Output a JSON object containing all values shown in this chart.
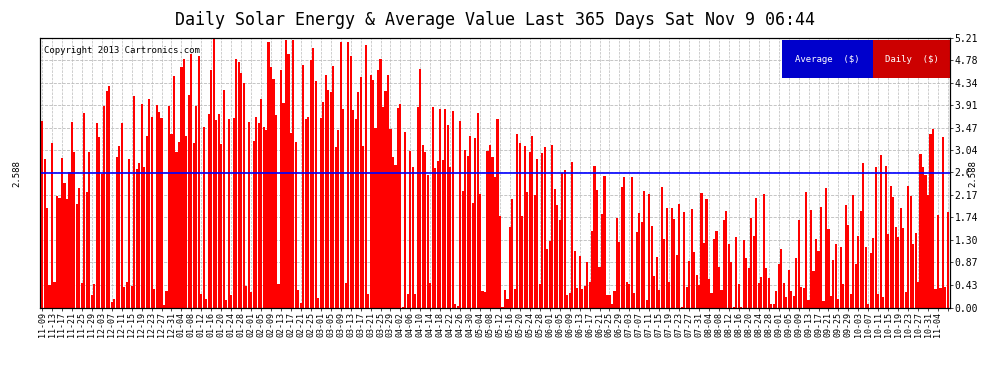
{
  "title": "Daily Solar Energy & Average Value Last 365 Days Sat Nov 9 06:44",
  "copyright_text": "Copyright 2013 Cartronics.com",
  "average_value": 2.588,
  "average_label": "2.588",
  "y_max": 5.21,
  "y_min": 0.0,
  "y_ticks": [
    0.0,
    0.43,
    0.87,
    1.3,
    1.74,
    2.17,
    2.61,
    3.04,
    3.47,
    3.91,
    4.34,
    4.78,
    5.21
  ],
  "bar_color": "#FF0000",
  "avg_line_color": "#0000FF",
  "background_color": "#FFFFFF",
  "grid_color": "#BBBBBB",
  "title_fontsize": 12,
  "legend_avg_bg": "#0000CC",
  "legend_daily_bg": "#CC0000",
  "legend_text_color": "#FFFFFF",
  "num_days": 365,
  "x_tick_labels": [
    "11-09",
    "11-13",
    "11-17",
    "11-21",
    "11-25",
    "11-29",
    "12-03",
    "12-07",
    "12-11",
    "12-15",
    "12-19",
    "12-23",
    "12-27",
    "12-31",
    "01-04",
    "01-08",
    "01-12",
    "01-16",
    "01-20",
    "01-24",
    "01-28",
    "02-01",
    "02-05",
    "02-09",
    "02-13",
    "02-17",
    "02-21",
    "02-25",
    "03-01",
    "03-05",
    "03-09",
    "03-13",
    "03-17",
    "03-21",
    "03-25",
    "03-29",
    "04-02",
    "04-06",
    "04-10",
    "04-14",
    "04-18",
    "04-22",
    "04-26",
    "04-30",
    "05-04",
    "05-08",
    "05-12",
    "05-16",
    "05-20",
    "05-24",
    "05-28",
    "06-01",
    "06-05",
    "06-09",
    "06-13",
    "06-17",
    "06-21",
    "06-25",
    "06-29",
    "07-03",
    "07-07",
    "07-11",
    "07-15",
    "07-19",
    "07-23",
    "07-27",
    "07-31",
    "08-04",
    "08-08",
    "08-12",
    "08-16",
    "08-20",
    "08-24",
    "08-28",
    "09-01",
    "09-05",
    "09-09",
    "09-13",
    "09-17",
    "09-21",
    "09-25",
    "09-29",
    "10-03",
    "10-07",
    "10-11",
    "10-15",
    "10-19",
    "10-23",
    "10-27",
    "10-31",
    "11-04"
  ]
}
